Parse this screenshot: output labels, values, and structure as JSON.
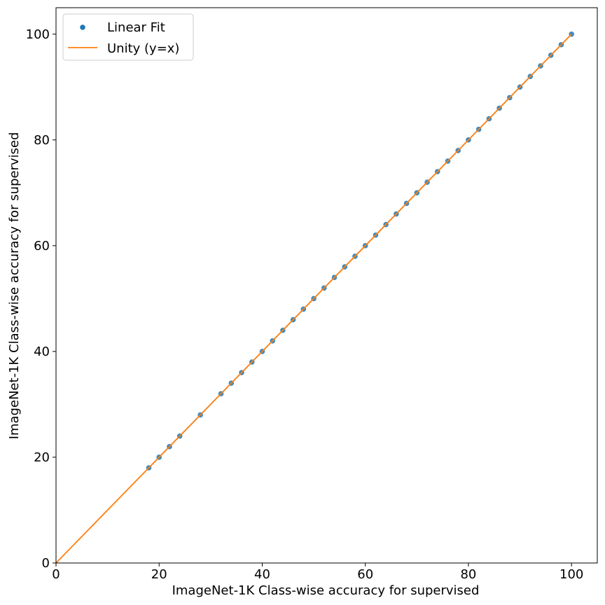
{
  "chart_data": {
    "type": "scatter",
    "title": "",
    "xlabel": "ImageNet-1K Class-wise accuracy for supervised",
    "ylabel": "ImageNet-1K Class-wise accuracy for supervised",
    "xlim": [
      0,
      105
    ],
    "ylim": [
      0,
      105
    ],
    "xticks": [
      0,
      20,
      40,
      60,
      80,
      100
    ],
    "yticks": [
      0,
      20,
      40,
      60,
      80,
      100
    ],
    "grid": false,
    "legend_position": "top-left",
    "series": [
      {
        "name": "Linear Fit",
        "kind": "scatter",
        "color": "#1f77b4",
        "x": [
          18,
          20,
          22,
          24,
          28,
          32,
          34,
          36,
          38,
          40,
          42,
          44,
          46,
          48,
          50,
          52,
          54,
          56,
          58,
          60,
          62,
          64,
          66,
          68,
          70,
          72,
          74,
          76,
          78,
          80,
          82,
          84,
          86,
          88,
          90,
          92,
          94,
          96,
          98,
          100
        ],
        "y": [
          18,
          20,
          22,
          24,
          28,
          32,
          34,
          36,
          38,
          40,
          42,
          44,
          46,
          48,
          50,
          52,
          54,
          56,
          58,
          60,
          62,
          64,
          66,
          68,
          70,
          72,
          74,
          76,
          78,
          80,
          82,
          84,
          86,
          88,
          90,
          92,
          94,
          96,
          98,
          100
        ]
      },
      {
        "name": "Unity (y=x)",
        "kind": "line",
        "color": "#ff7f0e",
        "x": [
          0,
          100
        ],
        "y": [
          0,
          100
        ]
      }
    ]
  }
}
